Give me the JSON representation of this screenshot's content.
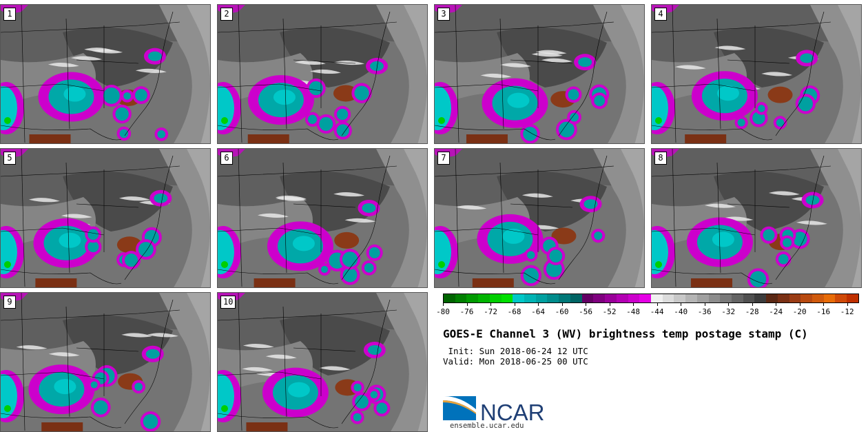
{
  "panels": [
    {
      "label": "1"
    },
    {
      "label": "2"
    },
    {
      "label": "3"
    },
    {
      "label": "4"
    },
    {
      "label": "5"
    },
    {
      "label": "6"
    },
    {
      "label": "7"
    },
    {
      "label": "8"
    },
    {
      "label": "9"
    },
    {
      "label": "10"
    }
  ],
  "colorbar": {
    "tick_labels": [
      "-80",
      "-76",
      "-72",
      "-68",
      "-64",
      "-60",
      "-56",
      "-52",
      "-48",
      "-44",
      "-40",
      "-36",
      "-32",
      "-28",
      "-24",
      "-20",
      "-16",
      "-12"
    ],
    "colors": [
      "#006400",
      "#007f00",
      "#009a00",
      "#00b400",
      "#00cf00",
      "#00e000",
      "#00c8c8",
      "#00b4b4",
      "#00a0a0",
      "#008c8c",
      "#007878",
      "#006464",
      "#640064",
      "#7f007f",
      "#990099",
      "#b300b3",
      "#cc00cc",
      "#e600e6",
      "#f0f0f0",
      "#dcdcdc",
      "#c8c8c8",
      "#b4b4b4",
      "#a0a0a0",
      "#8c8c8c",
      "#787878",
      "#646464",
      "#505050",
      "#3c3c3c",
      "#5a2814",
      "#7a3014",
      "#9a3c14",
      "#b84a10",
      "#d05a0c",
      "#e86c08",
      "#d04a08",
      "#c03000"
    ]
  },
  "title": "GOES-E Channel 3 (WV) brightness temp postage stamp (C)",
  "init": " Init: Sun 2018-06-24 12 UTC",
  "valid": "Valid: Mon 2018-06-25 00 UTC",
  "logo": {
    "text": "NCAR",
    "url": "ensemble.ucar.edu"
  }
}
